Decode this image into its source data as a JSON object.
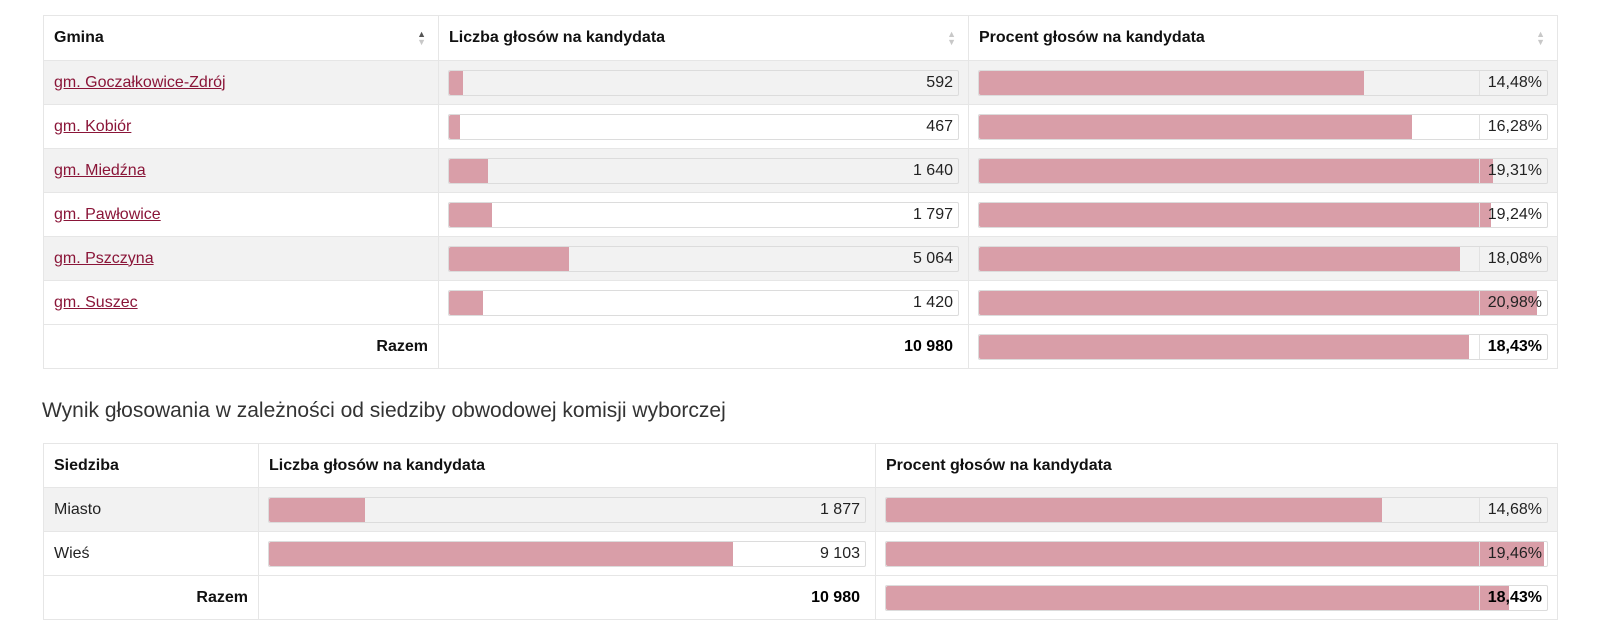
{
  "table1": {
    "headers": {
      "name": "Gmina",
      "votes": "Liczba głosów na kandydata",
      "percent": "Procent głosów na kandydata"
    },
    "rows": [
      {
        "name": "gm. Goczałkowice-Zdrój",
        "votes": "592",
        "votes_num": 592,
        "percent": "14,48%",
        "percent_num": 14.48
      },
      {
        "name": "gm. Kobiór",
        "votes": "467",
        "votes_num": 467,
        "percent": "16,28%",
        "percent_num": 16.28
      },
      {
        "name": "gm. Miedźna",
        "votes": "1 640",
        "votes_num": 1640,
        "percent": "19,31%",
        "percent_num": 19.31
      },
      {
        "name": "gm. Pawłowice",
        "votes": "1 797",
        "votes_num": 1797,
        "percent": "19,24%",
        "percent_num": 19.24
      },
      {
        "name": "gm. Pszczyna",
        "votes": "5 064",
        "votes_num": 5064,
        "percent": "18,08%",
        "percent_num": 18.08
      },
      {
        "name": "gm. Suszec",
        "votes": "1 420",
        "votes_num": 1420,
        "percent": "20,98%",
        "percent_num": 20.98
      }
    ],
    "total": {
      "label": "Razem",
      "votes": "10 980",
      "percent": "18,43%",
      "percent_num": 18.43
    }
  },
  "subtitle": "Wynik głosowania w zależności od siedziby obwodowej komisji wyborczej",
  "table2": {
    "headers": {
      "name": "Siedziba",
      "votes": "Liczba głosów na kandydata",
      "percent": "Procent głosów na kandydata"
    },
    "rows": [
      {
        "name": "Miasto",
        "votes": "1 877",
        "votes_num": 1877,
        "percent": "14,68%",
        "percent_num": 14.68
      },
      {
        "name": "Wieś",
        "votes": "9 103",
        "votes_num": 9103,
        "percent": "19,46%",
        "percent_num": 19.46
      }
    ],
    "total": {
      "label": "Razem",
      "votes": "10 980",
      "percent": "18,43%",
      "percent_num": 18.43
    }
  },
  "colors": {
    "bar_fill": "#d99ea8",
    "link": "#8a1538"
  }
}
